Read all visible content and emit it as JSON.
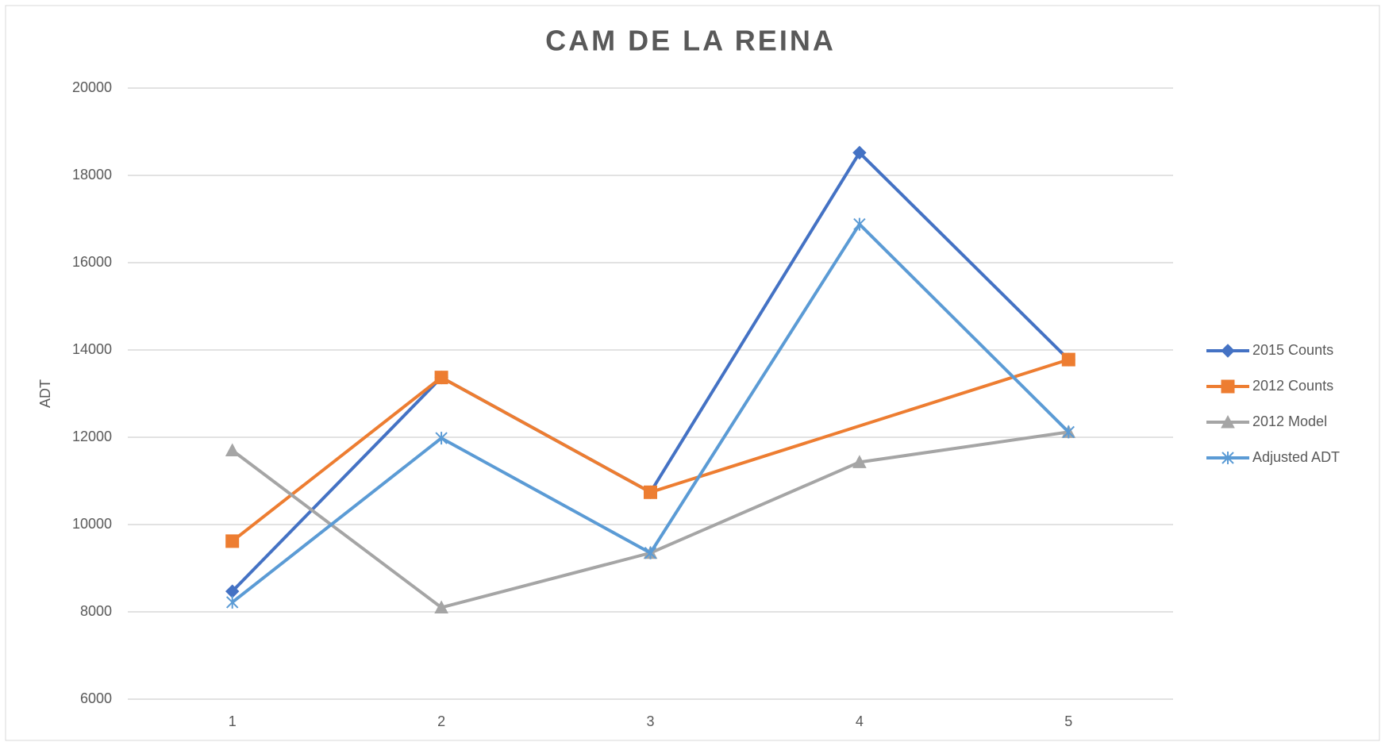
{
  "chart_data": {
    "type": "line",
    "title": "CAM DE LA REINA",
    "y_label": "ADT",
    "categories": [
      "1",
      "2",
      "3",
      "4",
      "5"
    ],
    "series": [
      {
        "name": "2015 Counts",
        "color": "#4472c4",
        "marker": "diamond",
        "values": [
          8470,
          13370,
          10740,
          18520,
          13780
        ]
      },
      {
        "name": "2012 Counts",
        "color": "#ed7d31",
        "marker": "square",
        "values": [
          9620,
          13370,
          10740,
          null,
          13780
        ]
      },
      {
        "name": "2012 Model",
        "color": "#a5a5a5",
        "marker": "triangle",
        "values": [
          11700,
          8100,
          9350,
          11430,
          12120
        ]
      },
      {
        "name": "Adjusted ADT",
        "color": "#5b9bd5",
        "marker": "star",
        "values": [
          8220,
          11980,
          9350,
          16880,
          12120
        ]
      }
    ],
    "connect_gaps": true,
    "ylim": [
      6000,
      20000
    ],
    "yticks": [
      6000,
      8000,
      10000,
      12000,
      14000,
      16000,
      18000,
      20000
    ],
    "grid": true,
    "legend": "right"
  }
}
